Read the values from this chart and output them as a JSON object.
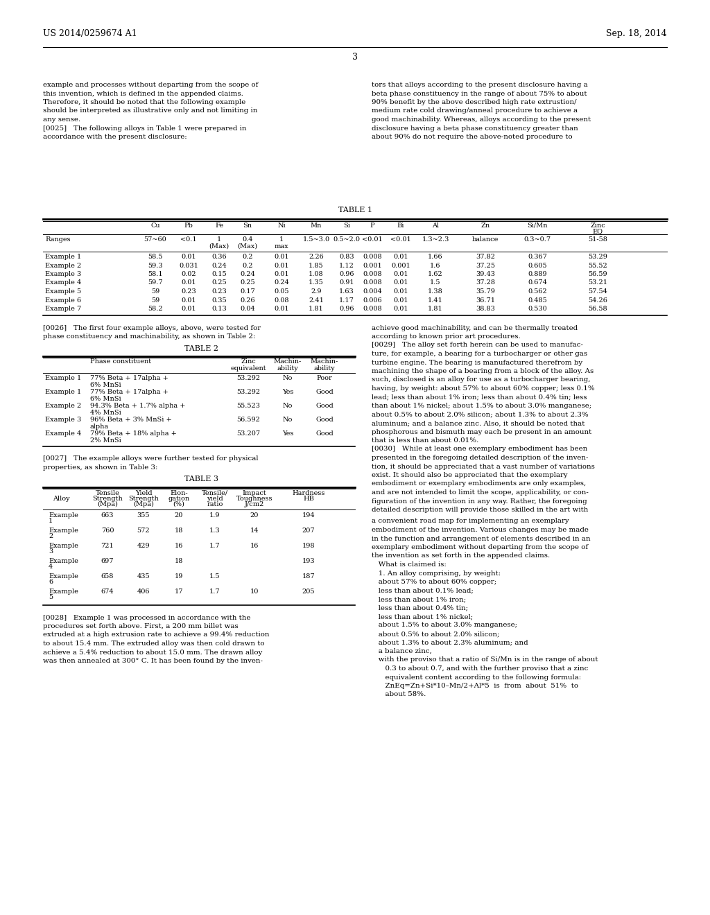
{
  "bg_color": "#ffffff",
  "header_left": "US 2014/0259674 A1",
  "header_right": "Sep. 18, 2014",
  "page_number": "3",
  "left_col_text": [
    "example and processes without departing from the scope of",
    "this invention, which is defined in the appended claims.",
    "Therefore, it should be noted that the following example",
    "should be interpreted as illustrative only and not limiting in",
    "any sense.",
    "[0025]   The following alloys in Table 1 were prepared in",
    "accordance with the present disclosure:"
  ],
  "right_col_text": [
    "tors that alloys according to the present disclosure having a",
    "beta phase constituency in the range of about 75% to about",
    "90% benefit by the above described high rate extrustion/",
    "medium rate cold drawing/anneal procedure to achieve a",
    "good machinability. Whereas, alloys according to the present",
    "disclosure having a beta phase constituency greater than",
    "about 90% do not require the above-noted procedure to"
  ],
  "table1_title": "TABLE 1",
  "table1_ranges": [
    "Ranges",
    "57~60",
    "<0.1",
    "1\n(Max)",
    "0.4\n(Max)",
    "1\nmax",
    "1.5~3.0",
    "0.5~2.0",
    "<0.01",
    "<0.01",
    "1.3~2.3",
    "balance",
    "0.3~0.7",
    "51-58"
  ],
  "table1_data": [
    [
      "Example 1",
      "58.5",
      "0.01",
      "0.36",
      "0.2",
      "0.01",
      "2.26",
      "0.83",
      "0.008",
      "0.01",
      "1.66",
      "37.82",
      "0.367",
      "53.29"
    ],
    [
      "Example 2",
      "59.3",
      "0.031",
      "0.24",
      "0.2",
      "0.01",
      "1.85",
      "1.12",
      "0.001",
      "0.001",
      "1.6",
      "37.25",
      "0.605",
      "55.52"
    ],
    [
      "Example 3",
      "58.1",
      "0.02",
      "0.15",
      "0.24",
      "0.01",
      "1.08",
      "0.96",
      "0.008",
      "0.01",
      "1.62",
      "39.43",
      "0.889",
      "56.59"
    ],
    [
      "Example 4",
      "59.7",
      "0.01",
      "0.25",
      "0.25",
      "0.24",
      "1.35",
      "0.91",
      "0.008",
      "0.01",
      "1.5",
      "37.28",
      "0.674",
      "53.21"
    ],
    [
      "Example 5",
      "59",
      "0.23",
      "0.23",
      "0.17",
      "0.05",
      "2.9",
      "1.63",
      "0.004",
      "0.01",
      "1.38",
      "35.79",
      "0.562",
      "57.54"
    ],
    [
      "Example 6",
      "59",
      "0.01",
      "0.35",
      "0.26",
      "0.08",
      "2.41",
      "1.17",
      "0.006",
      "0.01",
      "1.41",
      "36.71",
      "0.485",
      "54.26"
    ],
    [
      "Example 7",
      "58.2",
      "0.01",
      "0.13",
      "0.04",
      "0.01",
      "1.81",
      "0.96",
      "0.008",
      "0.01",
      "1.81",
      "38.83",
      "0.530",
      "56.58"
    ]
  ],
  "para0026_lines": [
    "[0026]   The first four example alloys, above, were tested for",
    "phase constituency and machinability, as shown in Table 2:"
  ],
  "table2_title": "TABLE 2",
  "table2_data": [
    [
      "Example 1",
      "77% Beta + 17alpha +\n6% MnSi",
      "53.292",
      "No",
      "Poor"
    ],
    [
      "Example 1",
      "77% Beta + 17alpha +\n6% MnSi",
      "53.292",
      "Yes",
      "Good"
    ],
    [
      "Example 2",
      "94.3% Beta + 1.7% alpha +\n4% MnSi",
      "55.523",
      "No",
      "Good"
    ],
    [
      "Example 3",
      "96% Beta + 3% MnSi +\nalpha",
      "56.592",
      "No",
      "Good"
    ],
    [
      "Example 4",
      "79% Beta + 18% alpha +\n2% MnSi",
      "53.207",
      "Yes",
      "Good"
    ]
  ],
  "para0027_lines": [
    "[0027]   The example alloys were further tested for physical",
    "properties, as shown in Table 3:"
  ],
  "table3_title": "TABLE 3",
  "table3_data": [
    [
      "Example\n1",
      "663",
      "355",
      "20",
      "1.9",
      "20",
      "194"
    ],
    [
      "Example\n2",
      "760",
      "572",
      "18",
      "1.3",
      "14",
      "207"
    ],
    [
      "Example\n3",
      "721",
      "429",
      "16",
      "1.7",
      "16",
      "198"
    ],
    [
      "Example\n4",
      "697",
      "",
      "18",
      "",
      "",
      "193"
    ],
    [
      "Example\n6",
      "658",
      "435",
      "19",
      "1.5",
      "",
      "187"
    ],
    [
      "Example\n5",
      "674",
      "406",
      "17",
      "1.7",
      "10",
      "205"
    ]
  ],
  "para0028_lines": [
    "[0028]   Example 1 was processed in accordance with the",
    "procedures set forth above. First, a 200 mm billet was",
    "extruded at a high extrusion rate to achieve a 99.4% reduction",
    "to about 15.4 mm. The extruded alloy was then cold drawn to",
    "achieve a 5.4% reduction to about 15.0 mm. The drawn alloy",
    "was then annealed at 300° C. It has been found by the inven-"
  ],
  "right_col_text2": [
    "achieve good machinability, and can be thermally treated",
    "according to known prior art procedures.",
    "[0029]   The alloy set forth herein can be used to manufac-",
    "ture, for example, a bearing for a turbocharger or other gas",
    "turbine engine. The bearing is manufactured therefrom by",
    "machining the shape of a bearing from a block of the alloy. As",
    "such, disclosed is an alloy for use as a turbocharger bearing,",
    "having, by weight: about 57% to about 60% copper; less 0.1%",
    "lead; less than about 1% iron; less than about 0.4% tin; less",
    "than about 1% nickel; about 1.5% to about 3.0% manganese;",
    "about 0.5% to about 2.0% silicon; about 1.3% to about 2.3%",
    "aluminum; and a balance zinc. Also, it should be noted that",
    "phosphorous and bismuth may each be present in an amount",
    "that is less than about 0.01%.",
    "[0030]   While at least one exemplary embodiment has been",
    "presented in the foregoing detailed description of the inven-",
    "tion, it should be appreciated that a vast number of variations",
    "exist. It should also be appreciated that the exemplary",
    "embodiment or exemplary embodiments are only examples,",
    "and are not intended to limit the scope, applicability, or con-",
    "figuration of the invention in any way. Rather, the foregoing",
    "detailed description will provide those skilled in the art with"
  ],
  "right_col_text3": [
    "a convenient road map for implementing an exemplary",
    "embodiment of the invention. Various changes may be made",
    "in the function and arrangement of elements described in an",
    "exemplary embodiment without departing from the scope of",
    "the invention as set forth in the appended claims.",
    "   What is claimed is:",
    "   1. An alloy comprising, by weight:",
    "   about 57% to about 60% copper;",
    "   less than about 0.1% lead;",
    "   less than about 1% iron;",
    "   less than about 0.4% tin;",
    "   less than about 1% nickel;",
    "   about 1.5% to about 3.0% manganese;",
    "   about 0.5% to about 2.0% silicon;",
    "   about 1.3% to about 2.3% aluminum; and",
    "   a balance zinc,",
    "   with the proviso that a ratio of Si/Mn is in the range of about",
    "      0.3 to about 0.7, and with the further proviso that a zinc",
    "      equivalent content according to the following formula:",
    "      ZnEq=Zn+Si*10–Mn/2+Al*5  is  from  about  51%  to",
    "      about 58%."
  ]
}
